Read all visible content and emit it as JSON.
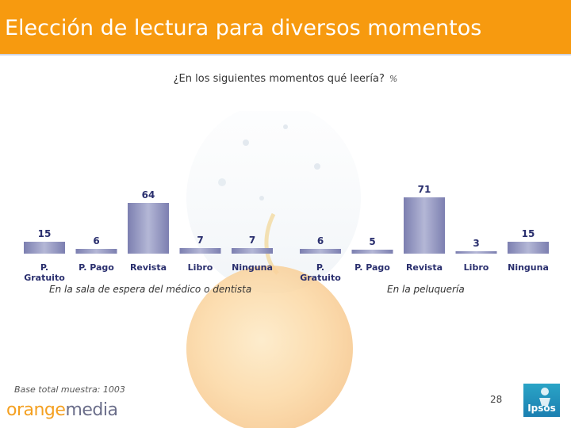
{
  "header": {
    "title": "Elección de lectura para diversos momentos"
  },
  "subtitle": {
    "question": "¿En los siguientes momentos qué leería?",
    "unit": "%"
  },
  "chart_data": [
    {
      "type": "bar",
      "title": "En la sala de espera del médico o dentista",
      "categories": [
        "P. Gratuito",
        "P. Pago",
        "Revista",
        "Libro",
        "Ninguna"
      ],
      "values": [
        15,
        6,
        64,
        7,
        7
      ],
      "ylim": [
        0,
        100
      ],
      "grid": false,
      "colors": {
        "bar": "#7c7fb0",
        "bar_highlight": "#b4b7d6",
        "label": "#2a2f6e"
      }
    },
    {
      "type": "bar",
      "title": "En la peluquería",
      "categories": [
        "P. Gratuito",
        "P. Pago",
        "Revista",
        "Libro",
        "Ninguna"
      ],
      "values": [
        6,
        5,
        71,
        3,
        15
      ],
      "ylim": [
        0,
        100
      ],
      "grid": false,
      "colors": {
        "bar": "#7c7fb0",
        "bar_highlight": "#b4b7d6",
        "label": "#2a2f6e"
      }
    }
  ],
  "footer": {
    "base_note": "Base total muestra: 1003",
    "brand_orange": "orange",
    "brand_media": "media",
    "page_number": "28",
    "ipsos_label": "Ipsos"
  },
  "colors": {
    "header_bg": "#f79a0f",
    "header_text": "#ffffff"
  }
}
